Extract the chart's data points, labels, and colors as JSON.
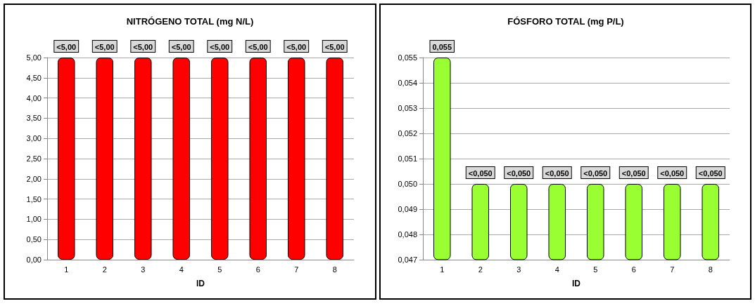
{
  "chart_data": [
    {
      "type": "bar",
      "title": "NITRÓGENO TOTAL (mg N/L)",
      "xlabel": "ID",
      "categories": [
        "1",
        "2",
        "3",
        "4",
        "5",
        "6",
        "7",
        "8"
      ],
      "series": [
        {
          "color": "#ff0000",
          "values": [
            5,
            5,
            5,
            5,
            5,
            5,
            5,
            5
          ],
          "value_labels": [
            "<5,00",
            "<5,00",
            "<5,00",
            "<5,00",
            "<5,00",
            "<5,00",
            "<5,00",
            "<5,00"
          ]
        }
      ],
      "ylim": [
        0,
        5
      ],
      "yticks": [
        {
          "value": 0,
          "label": "0,00"
        },
        {
          "value": 0.5,
          "label": "0,50"
        },
        {
          "value": 1,
          "label": "1,00"
        },
        {
          "value": 1.5,
          "label": "1,50"
        },
        {
          "value": 2,
          "label": "2,00"
        },
        {
          "value": 2.5,
          "label": "2,50"
        },
        {
          "value": 3,
          "label": "3,00"
        },
        {
          "value": 3.5,
          "label": "3,50"
        },
        {
          "value": 4,
          "label": "4,00"
        },
        {
          "value": 4.5,
          "label": "4,50"
        },
        {
          "value": 5,
          "label": "5,00"
        }
      ],
      "grid": "y"
    },
    {
      "type": "bar",
      "title": "FÓSFORO TOTAL (mg P/L)",
      "xlabel": "ID",
      "categories": [
        "1",
        "2",
        "3",
        "4",
        "5",
        "6",
        "7",
        "8"
      ],
      "series": [
        {
          "color": "#99ff33",
          "values": [
            0.055,
            0.05,
            0.05,
            0.05,
            0.05,
            0.05,
            0.05,
            0.05
          ],
          "value_labels": [
            "0,055",
            "<0,050",
            "<0,050",
            "<0,050",
            "<0,050",
            "<0,050",
            "<0,050",
            "<0,050"
          ]
        }
      ],
      "ylim": [
        0.047,
        0.055
      ],
      "yticks": [
        {
          "value": 0.047,
          "label": "0,047"
        },
        {
          "value": 0.048,
          "label": "0,048"
        },
        {
          "value": 0.049,
          "label": "0,049"
        },
        {
          "value": 0.05,
          "label": "0,050"
        },
        {
          "value": 0.051,
          "label": "0,051"
        },
        {
          "value": 0.052,
          "label": "0,052"
        },
        {
          "value": 0.053,
          "label": "0,053"
        },
        {
          "value": 0.054,
          "label": "0,054"
        },
        {
          "value": 0.055,
          "label": "0,055"
        }
      ],
      "grid": "y"
    }
  ]
}
